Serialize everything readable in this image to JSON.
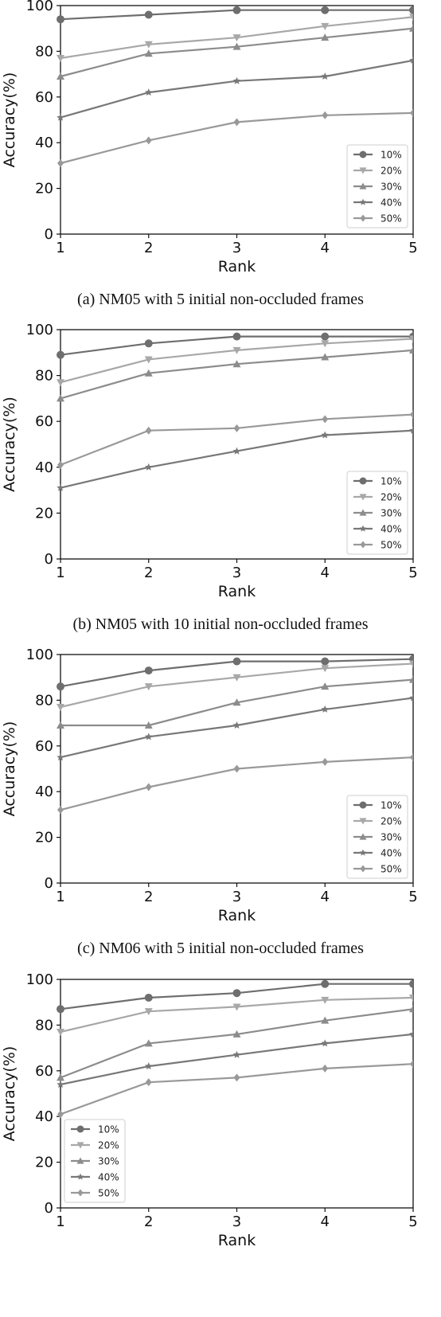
{
  "chart_data": [
    {
      "type": "line",
      "caption": "(a) NM05 with 5 initial non-occluded frames",
      "xlabel": "Rank",
      "ylabel": "Accuracy(%)",
      "x": [
        1,
        2,
        3,
        4,
        5
      ],
      "xlim": [
        1,
        5
      ],
      "ylim": [
        0,
        100
      ],
      "xticks": [
        "1",
        "2",
        "3",
        "4",
        "5"
      ],
      "yticks": [
        "0",
        "20",
        "40",
        "60",
        "80",
        "100"
      ],
      "legend_position": "lower right",
      "series": [
        {
          "name": "10%",
          "marker": "circle",
          "color": "#6e6e6e",
          "values": [
            94,
            96,
            98,
            98,
            98
          ]
        },
        {
          "name": "20%",
          "marker": "triangle-down",
          "color": "#a8a8a8",
          "values": [
            77,
            83,
            86,
            91,
            95
          ]
        },
        {
          "name": "30%",
          "marker": "triangle-up",
          "color": "#8c8c8c",
          "values": [
            69,
            79,
            82,
            86,
            90
          ]
        },
        {
          "name": "40%",
          "marker": "star",
          "color": "#787878",
          "values": [
            51,
            62,
            67,
            69,
            76
          ]
        },
        {
          "name": "50%",
          "marker": "diamond",
          "color": "#999999",
          "values": [
            31,
            41,
            49,
            52,
            53
          ]
        }
      ]
    },
    {
      "type": "line",
      "caption": "(b) NM05 with 10 initial non-occluded frames",
      "xlabel": "Rank",
      "ylabel": "Accuracy(%)",
      "x": [
        1,
        2,
        3,
        4,
        5
      ],
      "xlim": [
        1,
        5
      ],
      "ylim": [
        0,
        100
      ],
      "xticks": [
        "1",
        "2",
        "3",
        "4",
        "5"
      ],
      "yticks": [
        "0",
        "20",
        "40",
        "60",
        "80",
        "100"
      ],
      "legend_position": "lower right",
      "series": [
        {
          "name": "10%",
          "marker": "circle",
          "color": "#6e6e6e",
          "values": [
            89,
            94,
            97,
            97,
            97
          ]
        },
        {
          "name": "20%",
          "marker": "triangle-down",
          "color": "#a8a8a8",
          "values": [
            77,
            87,
            91,
            94,
            96
          ]
        },
        {
          "name": "30%",
          "marker": "triangle-up",
          "color": "#8c8c8c",
          "values": [
            70,
            81,
            85,
            88,
            91
          ]
        },
        {
          "name": "40%",
          "marker": "star",
          "color": "#787878",
          "values": [
            31,
            40,
            47,
            54,
            56
          ]
        },
        {
          "name": "50%",
          "marker": "diamond",
          "color": "#999999",
          "values": [
            41,
            56,
            57,
            61,
            63
          ]
        }
      ]
    },
    {
      "type": "line",
      "caption": "(c) NM06 with 5 initial non-occluded frames",
      "xlabel": "Rank",
      "ylabel": "Accuracy(%)",
      "x": [
        1,
        2,
        3,
        4,
        5
      ],
      "xlim": [
        1,
        5
      ],
      "ylim": [
        0,
        100
      ],
      "xticks": [
        "1",
        "2",
        "3",
        "4",
        "5"
      ],
      "yticks": [
        "0",
        "20",
        "40",
        "60",
        "80",
        "100"
      ],
      "legend_position": "lower right",
      "series": [
        {
          "name": "10%",
          "marker": "circle",
          "color": "#6e6e6e",
          "values": [
            86,
            93,
            97,
            97,
            98
          ]
        },
        {
          "name": "20%",
          "marker": "triangle-down",
          "color": "#a8a8a8",
          "values": [
            77,
            86,
            90,
            94,
            96
          ]
        },
        {
          "name": "30%",
          "marker": "triangle-up",
          "color": "#8c8c8c",
          "values": [
            69,
            69,
            79,
            86,
            89
          ]
        },
        {
          "name": "40%",
          "marker": "star",
          "color": "#787878",
          "values": [
            55,
            64,
            69,
            76,
            81
          ]
        },
        {
          "name": "50%",
          "marker": "diamond",
          "color": "#999999",
          "values": [
            32,
            42,
            50,
            53,
            55
          ]
        }
      ]
    },
    {
      "type": "line",
      "caption": "",
      "xlabel": "Rank",
      "ylabel": "Accuracy(%)",
      "x": [
        1,
        2,
        3,
        4,
        5
      ],
      "xlim": [
        1,
        5
      ],
      "ylim": [
        0,
        100
      ],
      "xticks": [
        "1",
        "2",
        "3",
        "4",
        "5"
      ],
      "yticks": [
        "0",
        "20",
        "40",
        "60",
        "80",
        "100"
      ],
      "legend_position": "lower left",
      "series": [
        {
          "name": "10%",
          "marker": "circle",
          "color": "#6e6e6e",
          "values": [
            87,
            92,
            94,
            98,
            98
          ]
        },
        {
          "name": "20%",
          "marker": "triangle-down",
          "color": "#a8a8a8",
          "values": [
            77,
            86,
            88,
            91,
            92
          ]
        },
        {
          "name": "30%",
          "marker": "triangle-up",
          "color": "#8c8c8c",
          "values": [
            57,
            72,
            76,
            82,
            87
          ]
        },
        {
          "name": "40%",
          "marker": "star",
          "color": "#787878",
          "values": [
            54,
            62,
            67,
            72,
            76
          ]
        },
        {
          "name": "50%",
          "marker": "diamond",
          "color": "#999999",
          "values": [
            41,
            55,
            57,
            61,
            63
          ]
        }
      ]
    }
  ]
}
